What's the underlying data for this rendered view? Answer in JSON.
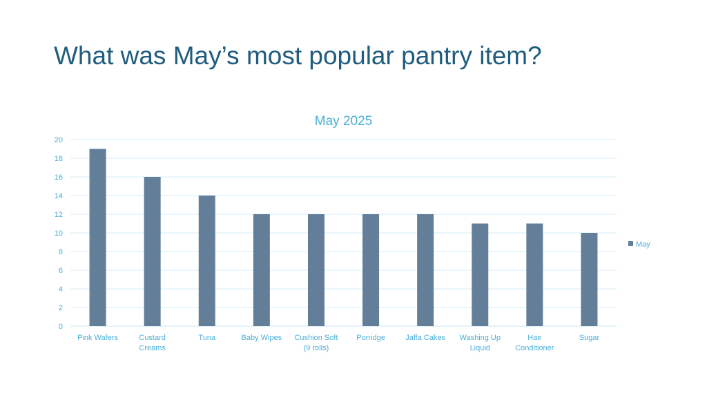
{
  "slide": {
    "title": "What was May’s most popular pantry item?"
  },
  "chart_data": {
    "type": "bar",
    "title": "May 2025",
    "categories": [
      [
        "Pink Wafers"
      ],
      [
        "Custard",
        "Creams"
      ],
      [
        "Tuna"
      ],
      [
        "Baby Wipes"
      ],
      [
        "Cushion Soft",
        "(9 rolls)"
      ],
      [
        "Porridge"
      ],
      [
        "Jaffa Cakes"
      ],
      [
        "Washing Up",
        "Liquid"
      ],
      [
        "Hair",
        "Conditioner"
      ],
      [
        "Sugar"
      ]
    ],
    "series": [
      {
        "name": "May",
        "values": [
          19,
          16,
          14,
          12,
          12,
          12,
          12,
          11,
          11,
          10
        ]
      }
    ],
    "ylim": [
      0,
      20
    ],
    "yticks": [
      0,
      2,
      4,
      6,
      8,
      10,
      12,
      14,
      16,
      18,
      20
    ],
    "grid": true,
    "legend": "right",
    "colors": {
      "bar": "#627e99",
      "text": "#4aaed6",
      "title": "#1f5c7e"
    }
  }
}
